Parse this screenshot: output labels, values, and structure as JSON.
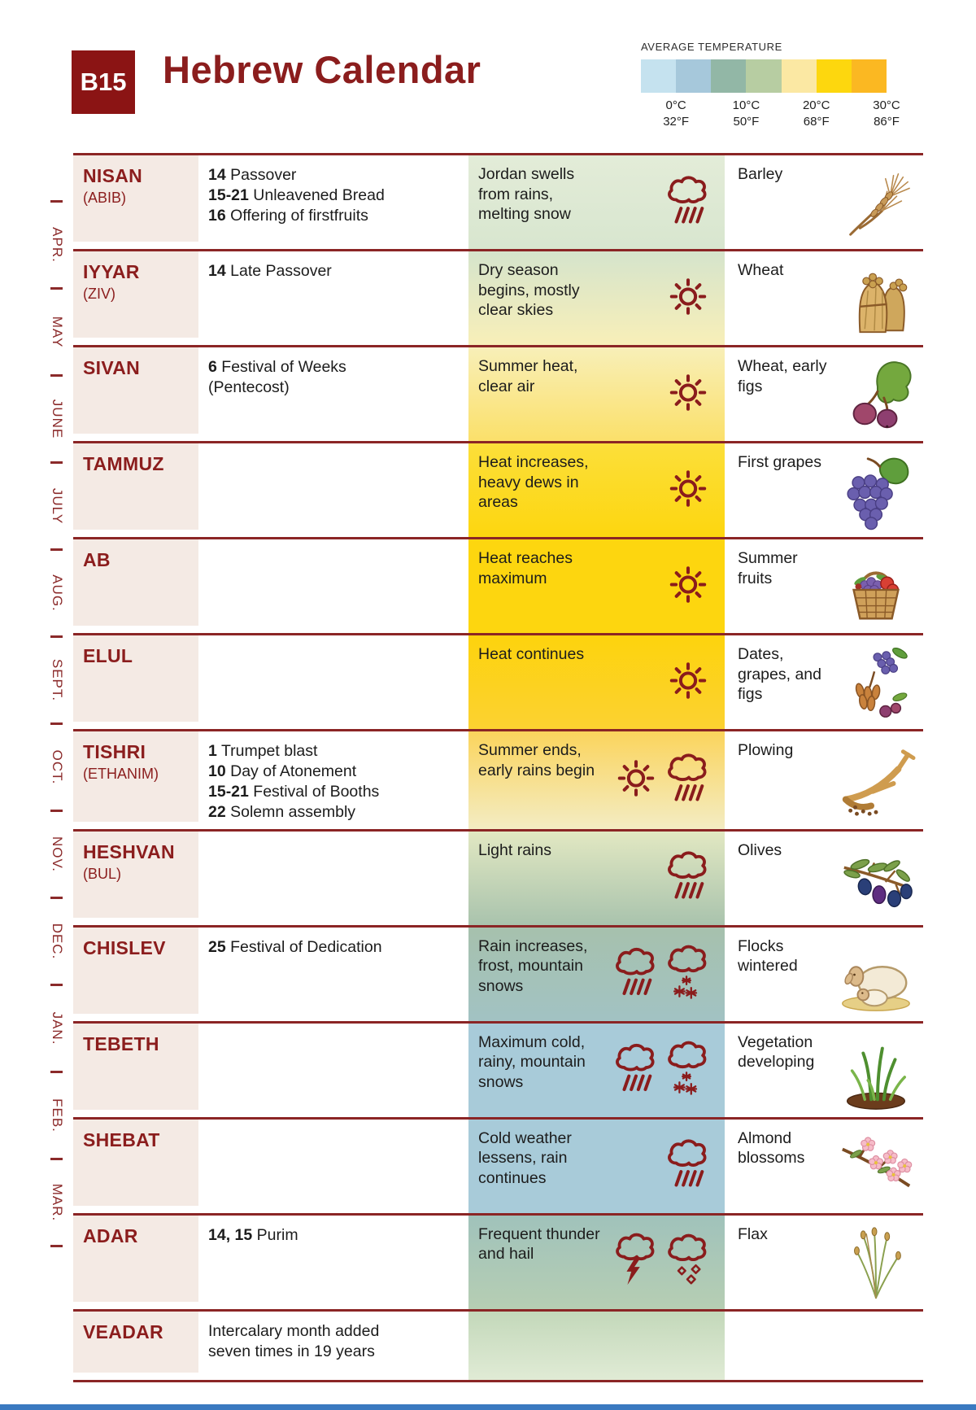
{
  "header": {
    "badge": "B15",
    "title": "Hebrew Calendar"
  },
  "legend": {
    "title": "AVERAGE TEMPERATURE",
    "swatches": [
      "#c5e2ef",
      "#a6c8db",
      "#92b7a6",
      "#b7cda2",
      "#fbe8a3",
      "#fdd70e",
      "#fbb822"
    ],
    "labels": [
      {
        "celsius": "0°C",
        "fahrenheit": "32°F"
      },
      {
        "celsius": "10°C",
        "fahrenheit": "50°F"
      },
      {
        "celsius": "20°C",
        "fahrenheit": "68°F"
      },
      {
        "celsius": "30°C",
        "fahrenheit": "86°F"
      }
    ]
  },
  "side_rail": {
    "months": [
      "APR.",
      "MAY",
      "JUNE",
      "JULY",
      "AUG.",
      "SEPT.",
      "OCT.",
      "NOV.",
      "DEC.",
      "JAN.",
      "FEB.",
      "MAR."
    ]
  },
  "colors": {
    "accent_red": "#8b1d1d",
    "rule_red": "#8b2525",
    "icon_red": "#8a1c1c",
    "month_cell_bg": "#f4eae4",
    "bottom_bar_blue": "#3a79c0"
  },
  "rows": [
    {
      "month": "NISAN",
      "alt_name": "(ABIB)",
      "festivals": [
        {
          "dates": "14",
          "label": "Passover"
        },
        {
          "dates": "15-21",
          "label": "Unleavened Bread"
        },
        {
          "dates": "16",
          "label": "Offering of firstfruits"
        }
      ],
      "weather": {
        "text": "Jordan swells from rains, melting snow",
        "icons": [
          "rain"
        ],
        "bg_top": "#e3ecd8",
        "bg_bottom": "#d8e6cf"
      },
      "crop": {
        "label": "Barley",
        "illustration": "barley"
      }
    },
    {
      "month": "IYYAR",
      "alt_name": "(ZIV)",
      "festivals": [
        {
          "dates": "14",
          "label": "Late Passover"
        }
      ],
      "weather": {
        "text": "Dry season begins, mostly clear skies",
        "icons": [
          "sun"
        ],
        "bg_top": "#d5e4cc",
        "bg_bottom": "#f8efb8"
      },
      "crop": {
        "label": "Wheat",
        "illustration": "wheat-sheaves"
      }
    },
    {
      "month": "SIVAN",
      "alt_name": "",
      "festivals": [
        {
          "dates": "6",
          "label": "Festival of Weeks"
        },
        {
          "dates": "",
          "label": "(Pentecost)"
        }
      ],
      "weather": {
        "text": "Summer heat, clear air",
        "icons": [
          "sun"
        ],
        "bg_top": "#f8efb8",
        "bg_bottom": "#fbe06a"
      },
      "crop": {
        "label": "Wheat, early figs",
        "illustration": "figs"
      }
    },
    {
      "month": "TAMMUZ",
      "alt_name": "",
      "festivals": [],
      "weather": {
        "text": "Heat increases, heavy dews in areas",
        "icons": [
          "sun"
        ],
        "bg_top": "#fcdf3a",
        "bg_bottom": "#fdd60f"
      },
      "crop": {
        "label": "First grapes",
        "illustration": "grapes"
      }
    },
    {
      "month": "AB",
      "alt_name": "",
      "festivals": [],
      "weather": {
        "text": "Heat reaches maximum",
        "icons": [
          "sun"
        ],
        "bg_top": "#fdd60f",
        "bg_bottom": "#fdd60f"
      },
      "crop": {
        "label": "Summer fruits",
        "illustration": "fruit-basket"
      }
    },
    {
      "month": "ELUL",
      "alt_name": "",
      "festivals": [],
      "weather": {
        "text": "Heat continues",
        "icons": [
          "sun"
        ],
        "bg_top": "#fdd30d",
        "bg_bottom": "#fcd231"
      },
      "crop": {
        "label": "Dates, grapes, and figs",
        "illustration": "dates-grapes-figs"
      }
    },
    {
      "month": "TISHRI",
      "alt_name": "(ETHANIM)",
      "festivals": [
        {
          "dates": "1",
          "label": "Trumpet blast"
        },
        {
          "dates": "10",
          "label": "Day of Atonement"
        },
        {
          "dates": "15-21",
          "label": "Festival of Booths"
        },
        {
          "dates": "22",
          "label": "Solemn assembly"
        }
      ],
      "weather": {
        "text": "Summer ends, early rains begin",
        "icons": [
          "sun",
          "rain"
        ],
        "bg_top": "#fbd45c",
        "bg_bottom": "#f3ecc3"
      },
      "crop": {
        "label": "Plowing",
        "illustration": "plow"
      }
    },
    {
      "month": "HESHVAN",
      "alt_name": "(BUL)",
      "festivals": [],
      "weather": {
        "text": "Light rains",
        "icons": [
          "rain"
        ],
        "bg_top": "#e2e8c2",
        "bg_bottom": "#a9c3ad"
      },
      "crop": {
        "label": "Olives",
        "illustration": "olives"
      }
    },
    {
      "month": "CHISLEV",
      "alt_name": "",
      "festivals": [
        {
          "dates": "25",
          "label": "Festival of Dedication"
        }
      ],
      "weather": {
        "text": "Rain increases, frost, mountain snows",
        "icons": [
          "rain",
          "snow"
        ],
        "bg_top": "#a6c1ad",
        "bg_bottom": "#a2c2c3"
      },
      "crop": {
        "label": "Flocks wintered",
        "illustration": "sheep"
      }
    },
    {
      "month": "TEBETH",
      "alt_name": "",
      "festivals": [],
      "weather": {
        "text": "Maximum cold, rainy, mountain snows",
        "icons": [
          "rain",
          "snow"
        ],
        "bg_top": "#a8cbd9",
        "bg_bottom": "#a8cbd9"
      },
      "crop": {
        "label": "Vegetation developing",
        "illustration": "sprouts"
      }
    },
    {
      "month": "SHEBAT",
      "alt_name": "",
      "festivals": [],
      "weather": {
        "text": "Cold weather lessens, rain continues",
        "icons": [
          "rain"
        ],
        "bg_top": "#a8cbd9",
        "bg_bottom": "#a8cbd9"
      },
      "crop": {
        "label": "Almond blossoms",
        "illustration": "almond-blossoms"
      }
    },
    {
      "month": "ADAR",
      "alt_name": "",
      "festivals": [
        {
          "dates": "14, 15",
          "label": "Purim"
        }
      ],
      "weather": {
        "text": "Frequent thunder and hail",
        "icons": [
          "thunder",
          "hail"
        ],
        "bg_top": "#a0c2bb",
        "bg_bottom": "#b6ceb3"
      },
      "crop": {
        "label": "Flax",
        "illustration": "flax"
      }
    },
    {
      "month": "VEADAR",
      "alt_name": "",
      "festivals": [
        {
          "dates": "",
          "label": "Intercalary month added seven times in 19 years"
        }
      ],
      "weather": {
        "text": "",
        "icons": [],
        "bg_top": "#c3d8ba",
        "bg_bottom": "#e0ebd5"
      },
      "crop": null
    }
  ]
}
